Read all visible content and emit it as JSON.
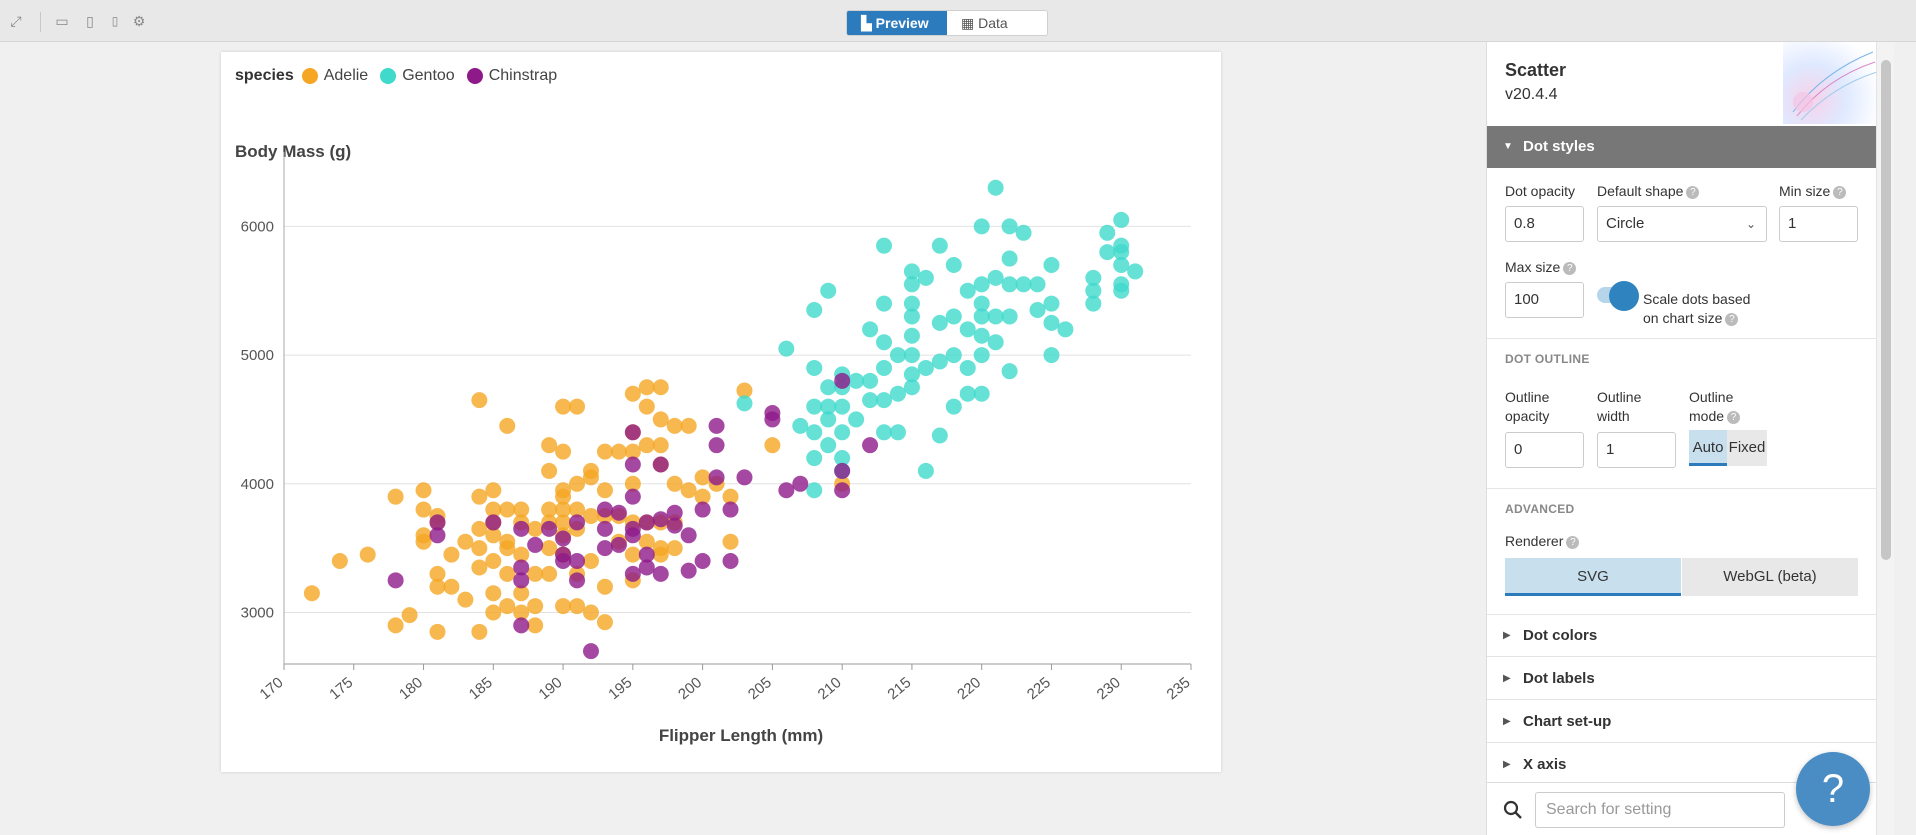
{
  "topbar": {
    "icons": [
      "fullscreen-icon",
      "desktop-icon",
      "tablet-icon",
      "mobile-icon",
      "gear-icon"
    ],
    "tabs": [
      {
        "label": "Preview",
        "icon": "chart-icon",
        "active": true
      },
      {
        "label": "Data",
        "icon": "table-icon",
        "active": false
      }
    ]
  },
  "chart": {
    "legend_title": "species",
    "legend": [
      {
        "name": "Adelie",
        "color": "#f5a623"
      },
      {
        "name": "Gentoo",
        "color": "#3fdacc"
      },
      {
        "name": "Chinstrap",
        "color": "#8e1a8a"
      }
    ],
    "ylabel": "Body Mass (g)",
    "xlabel": "Flipper Length (mm)"
  },
  "chart_data": {
    "type": "scatter",
    "title": "",
    "xlabel": "Flipper Length (mm)",
    "ylabel": "Body Mass (g)",
    "xlim": [
      170,
      235
    ],
    "ylim": [
      2600,
      6500
    ],
    "x_ticks": [
      170,
      175,
      180,
      185,
      190,
      195,
      200,
      205,
      210,
      215,
      220,
      225,
      230,
      235
    ],
    "y_ticks": [
      3000,
      4000,
      5000,
      6000
    ],
    "grid": true,
    "legend_position": "top-left",
    "series": [
      {
        "name": "Adelie",
        "color": "#f5a623",
        "points": [
          [
            172,
            3150
          ],
          [
            174,
            3400
          ],
          [
            176,
            3450
          ],
          [
            178,
            3900
          ],
          [
            178,
            2900
          ],
          [
            179,
            2980
          ],
          [
            180,
            3950
          ],
          [
            180,
            3800
          ],
          [
            180,
            3550
          ],
          [
            180,
            3600
          ],
          [
            181,
            3700
          ],
          [
            181,
            3750
          ],
          [
            181,
            3300
          ],
          [
            181,
            3200
          ],
          [
            181,
            2850
          ],
          [
            182,
            3450
          ],
          [
            182,
            3200
          ],
          [
            183,
            3550
          ],
          [
            183,
            3100
          ],
          [
            184,
            3900
          ],
          [
            184,
            3650
          ],
          [
            184,
            3500
          ],
          [
            184,
            3350
          ],
          [
            184,
            2850
          ],
          [
            184,
            4650
          ],
          [
            185,
            3950
          ],
          [
            185,
            3800
          ],
          [
            185,
            3700
          ],
          [
            185,
            3600
          ],
          [
            185,
            3400
          ],
          [
            185,
            3150
          ],
          [
            185,
            3000
          ],
          [
            186,
            4450
          ],
          [
            186,
            3800
          ],
          [
            186,
            3550
          ],
          [
            186,
            3500
          ],
          [
            186,
            3300
          ],
          [
            186,
            3050
          ],
          [
            187,
            3800
          ],
          [
            187,
            3700
          ],
          [
            187,
            3450
          ],
          [
            187,
            3150
          ],
          [
            187,
            3000
          ],
          [
            188,
            3650
          ],
          [
            188,
            3300
          ],
          [
            188,
            3050
          ],
          [
            188,
            2900
          ],
          [
            189,
            4300
          ],
          [
            189,
            4100
          ],
          [
            189,
            3800
          ],
          [
            189,
            3700
          ],
          [
            189,
            3500
          ],
          [
            189,
            3300
          ],
          [
            190,
            4600
          ],
          [
            190,
            4250
          ],
          [
            190,
            3950
          ],
          [
            190,
            3900
          ],
          [
            190,
            3800
          ],
          [
            190,
            3700
          ],
          [
            190,
            3600
          ],
          [
            190,
            3450
          ],
          [
            190,
            3050
          ],
          [
            191,
            4600
          ],
          [
            191,
            4000
          ],
          [
            191,
            3800
          ],
          [
            191,
            3650
          ],
          [
            191,
            3300
          ],
          [
            191,
            3050
          ],
          [
            192,
            4100
          ],
          [
            192,
            4050
          ],
          [
            192,
            3750
          ],
          [
            192,
            3400
          ],
          [
            192,
            3000
          ],
          [
            193,
            4250
          ],
          [
            193,
            3950
          ],
          [
            193,
            3750
          ],
          [
            193,
            3200
          ],
          [
            193,
            2925
          ],
          [
            194,
            4250
          ],
          [
            194,
            3750
          ],
          [
            194,
            3550
          ],
          [
            195,
            4700
          ],
          [
            195,
            4400
          ],
          [
            195,
            4250
          ],
          [
            195,
            4000
          ],
          [
            195,
            3700
          ],
          [
            195,
            3450
          ],
          [
            195,
            3250
          ],
          [
            196,
            4750
          ],
          [
            196,
            4600
          ],
          [
            196,
            4300
          ],
          [
            196,
            3700
          ],
          [
            196,
            3550
          ],
          [
            197,
            4750
          ],
          [
            197,
            4500
          ],
          [
            197,
            4300
          ],
          [
            197,
            4150
          ],
          [
            197,
            3700
          ],
          [
            197,
            3500
          ],
          [
            197,
            3450
          ],
          [
            198,
            4450
          ],
          [
            198,
            4000
          ],
          [
            198,
            3700
          ],
          [
            198,
            3500
          ],
          [
            199,
            4450
          ],
          [
            199,
            3950
          ],
          [
            200,
            4050
          ],
          [
            200,
            3900
          ],
          [
            201,
            4000
          ],
          [
            202,
            3550
          ],
          [
            202,
            3900
          ],
          [
            203,
            4725
          ],
          [
            205,
            4300
          ],
          [
            210,
            4000
          ]
        ]
      },
      {
        "name": "Gentoo",
        "color": "#3fdacc",
        "points": [
          [
            203,
            4625
          ],
          [
            206,
            5050
          ],
          [
            207,
            4450
          ],
          [
            208,
            4900
          ],
          [
            208,
            4600
          ],
          [
            208,
            4400
          ],
          [
            208,
            4200
          ],
          [
            208,
            3950
          ],
          [
            208,
            5350
          ],
          [
            209,
            5500
          ],
          [
            209,
            4750
          ],
          [
            209,
            4600
          ],
          [
            209,
            4500
          ],
          [
            209,
            4300
          ],
          [
            210,
            4850
          ],
          [
            210,
            4750
          ],
          [
            210,
            4600
          ],
          [
            210,
            4400
          ],
          [
            210,
            4200
          ],
          [
            210,
            4100
          ],
          [
            211,
            4800
          ],
          [
            211,
            4500
          ],
          [
            212,
            5200
          ],
          [
            212,
            4800
          ],
          [
            212,
            4650
          ],
          [
            213,
            5850
          ],
          [
            213,
            5400
          ],
          [
            213,
            5100
          ],
          [
            213,
            4900
          ],
          [
            213,
            4650
          ],
          [
            213,
            4400
          ],
          [
            214,
            5000
          ],
          [
            214,
            4700
          ],
          [
            214,
            4400
          ],
          [
            215,
            5650
          ],
          [
            215,
            5550
          ],
          [
            215,
            5400
          ],
          [
            215,
            5300
          ],
          [
            215,
            5150
          ],
          [
            215,
            5000
          ],
          [
            215,
            4850
          ],
          [
            215,
            4750
          ],
          [
            216,
            5600
          ],
          [
            216,
            4900
          ],
          [
            216,
            4100
          ],
          [
            217,
            5850
          ],
          [
            217,
            5250
          ],
          [
            217,
            4950
          ],
          [
            217,
            4375
          ],
          [
            218,
            5700
          ],
          [
            218,
            5300
          ],
          [
            218,
            5000
          ],
          [
            218,
            4600
          ],
          [
            219,
            5500
          ],
          [
            219,
            5200
          ],
          [
            219,
            4900
          ],
          [
            219,
            4700
          ],
          [
            220,
            6000
          ],
          [
            220,
            5550
          ],
          [
            220,
            5400
          ],
          [
            220,
            5300
          ],
          [
            220,
            5150
          ],
          [
            220,
            5000
          ],
          [
            220,
            4700
          ],
          [
            221,
            6300
          ],
          [
            221,
            5600
          ],
          [
            221,
            5300
          ],
          [
            221,
            5100
          ],
          [
            222,
            6000
          ],
          [
            222,
            5750
          ],
          [
            222,
            5550
          ],
          [
            222,
            5300
          ],
          [
            222,
            4875
          ],
          [
            223,
            5950
          ],
          [
            223,
            5550
          ],
          [
            224,
            5550
          ],
          [
            224,
            5350
          ],
          [
            225,
            5700
          ],
          [
            225,
            5400
          ],
          [
            225,
            5250
          ],
          [
            225,
            5000
          ],
          [
            226,
            5200
          ],
          [
            228,
            5600
          ],
          [
            228,
            5500
          ],
          [
            228,
            5400
          ],
          [
            229,
            5950
          ],
          [
            229,
            5800
          ],
          [
            230,
            6050
          ],
          [
            230,
            5850
          ],
          [
            230,
            5800
          ],
          [
            230,
            5700
          ],
          [
            230,
            5550
          ],
          [
            230,
            5500
          ],
          [
            231,
            5650
          ]
        ]
      },
      {
        "name": "Chinstrap",
        "color": "#8e1a8a",
        "points": [
          [
            178,
            3250
          ],
          [
            181,
            3700
          ],
          [
            181,
            3600
          ],
          [
            185,
            3700
          ],
          [
            187,
            3650
          ],
          [
            187,
            3350
          ],
          [
            187,
            3250
          ],
          [
            187,
            2900
          ],
          [
            188,
            3525
          ],
          [
            189,
            3650
          ],
          [
            190,
            3575
          ],
          [
            190,
            3450
          ],
          [
            190,
            3400
          ],
          [
            191,
            3700
          ],
          [
            191,
            3400
          ],
          [
            191,
            3250
          ],
          [
            192,
            2700
          ],
          [
            193,
            3800
          ],
          [
            193,
            3650
          ],
          [
            193,
            3500
          ],
          [
            194,
            3775
          ],
          [
            194,
            3525
          ],
          [
            195,
            4400
          ],
          [
            195,
            4150
          ],
          [
            195,
            3900
          ],
          [
            195,
            3650
          ],
          [
            195,
            3600
          ],
          [
            195,
            3300
          ],
          [
            196,
            3700
          ],
          [
            196,
            3450
          ],
          [
            196,
            3350
          ],
          [
            197,
            4150
          ],
          [
            197,
            3725
          ],
          [
            197,
            3300
          ],
          [
            198,
            3775
          ],
          [
            198,
            3675
          ],
          [
            199,
            3600
          ],
          [
            199,
            3325
          ],
          [
            200,
            3800
          ],
          [
            200,
            3400
          ],
          [
            201,
            4300
          ],
          [
            201,
            4450
          ],
          [
            201,
            4050
          ],
          [
            202,
            3400
          ],
          [
            202,
            3800
          ],
          [
            203,
            4050
          ],
          [
            205,
            4550
          ],
          [
            205,
            4500
          ],
          [
            206,
            3950
          ],
          [
            207,
            4000
          ],
          [
            210,
            4800
          ],
          [
            210,
            4100
          ],
          [
            210,
            3950
          ],
          [
            212,
            4300
          ]
        ]
      }
    ]
  },
  "panel": {
    "title": "Scatter",
    "version": "v20.4.4",
    "open_section": "Dot styles",
    "dot_opacity_label": "Dot opacity",
    "dot_opacity_value": "0.8",
    "default_shape_label": "Default shape",
    "default_shape_value": "Circle",
    "min_size_label": "Min size",
    "min_size_value": "1",
    "max_size_label": "Max size",
    "max_size_value": "100",
    "scale_label_1": "Scale dots based",
    "scale_label_2": "on chart size",
    "dot_outline_head": "DOT OUTLINE",
    "outline_opacity_1": "Outline",
    "outline_opacity_2": "opacity",
    "outline_opacity_value": "0",
    "outline_width_1": "Outline",
    "outline_width_2": "width",
    "outline_width_value": "1",
    "outline_mode_1": "Outline",
    "outline_mode_2": "mode",
    "mode_auto": "Auto",
    "mode_fixed": "Fixed",
    "advanced_head": "ADVANCED",
    "renderer_label": "Renderer",
    "renderer_svg": "SVG",
    "renderer_webgl": "WebGL (beta)",
    "collapsed_sections": [
      "Dot colors",
      "Dot labels",
      "Chart set-up",
      "X axis"
    ],
    "search_placeholder": "Search for setting"
  },
  "help_fab": "?"
}
